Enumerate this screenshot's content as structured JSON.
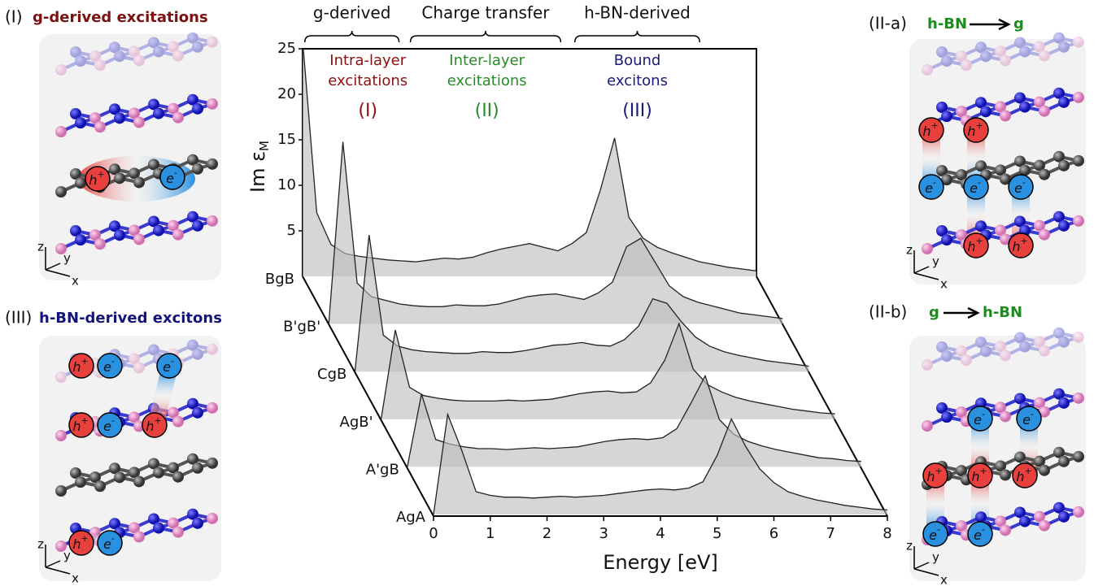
{
  "panels": [
    {
      "label": "(I)",
      "title": "g-derived excitations",
      "color": "#7a1010"
    },
    {
      "label": "(III)",
      "title": "h-BN-derived excitons",
      "color": "#14147a"
    },
    {
      "label": "(II-a)",
      "from": "h-BN",
      "to": "g",
      "color": "#1f8a1f"
    },
    {
      "label": "(II-b)",
      "from": "g",
      "to": "h-BN",
      "color": "#1f8a1f"
    }
  ],
  "symbols": {
    "hole": "h",
    "hole_charge": "+",
    "electron": "e",
    "electron_charge": "-",
    "axis_z": "z",
    "axis_y": "y",
    "axis_x": "x"
  },
  "chart_data": {
    "type": "waterfall",
    "xlabel": "Energy [eV]",
    "ylabel": "Im ε",
    "ylabel_subscript": "M",
    "xlim": [
      0,
      8
    ],
    "xticks": [
      0,
      1,
      2,
      3,
      4,
      5,
      6,
      7,
      8
    ],
    "ylim": [
      0,
      25
    ],
    "yticks": [
      5,
      10,
      15,
      20,
      25
    ],
    "color": "#bdbdbd",
    "x": [
      0,
      0.25,
      0.5,
      0.75,
      1,
      1.25,
      1.5,
      1.75,
      2,
      2.25,
      2.5,
      2.75,
      3,
      3.25,
      3.5,
      3.75,
      4,
      4.25,
      4.5,
      4.75,
      5,
      5.25,
      5.5,
      5.75,
      6,
      6.25,
      6.5,
      6.75,
      7,
      7.25,
      7.5,
      7.75,
      8
    ],
    "series": [
      {
        "name": "BgB",
        "values": [
          26,
          7,
          3.5,
          2.5,
          2.2,
          2,
          1.8,
          1.7,
          1.6,
          1.8,
          2.0,
          1.9,
          2.1,
          2.6,
          3.0,
          3.3,
          3.6,
          3.2,
          2.8,
          3.6,
          4.8,
          9.5,
          15.2,
          6.5,
          4.2,
          3.2,
          2.6,
          2.1,
          1.6,
          1.3,
          1.0,
          0.8,
          0.6
        ]
      },
      {
        "name": "B'gB'",
        "values": [
          0,
          20,
          4.5,
          3,
          2.6,
          2.2,
          2,
          1.9,
          1.9,
          2.1,
          2.0,
          2.0,
          2.2,
          2.6,
          3.0,
          3.2,
          3.3,
          3.0,
          2.7,
          3.4,
          4.6,
          8.5,
          9.4,
          6.8,
          4.2,
          3.0,
          2.4,
          2.0,
          1.6,
          1.2,
          1.0,
          0.8,
          0.6
        ]
      },
      {
        "name": "CgB",
        "values": [
          0,
          15,
          4,
          2.8,
          2.4,
          2.2,
          2.1,
          2.0,
          2.0,
          2.2,
          2.1,
          2.1,
          2.3,
          2.6,
          2.9,
          3.0,
          3.2,
          2.9,
          2.8,
          3.5,
          5.0,
          8.0,
          7.5,
          5.5,
          3.8,
          2.8,
          2.2,
          1.8,
          1.5,
          1.2,
          1.0,
          0.8,
          0.6
        ]
      },
      {
        "name": "AgB'",
        "values": [
          0,
          9.8,
          3.5,
          2.6,
          2.3,
          2.1,
          2.0,
          2.0,
          2.0,
          2.1,
          2.0,
          2.1,
          2.2,
          2.5,
          2.8,
          3.0,
          3.1,
          2.9,
          3.0,
          4.0,
          6.5,
          10.5,
          5.5,
          3.8,
          3.0,
          2.4,
          2.0,
          1.7,
          1.4,
          1.1,
          0.9,
          0.7,
          0.6
        ]
      },
      {
        "name": "A'gB",
        "values": [
          0,
          8,
          3,
          2.5,
          2.2,
          2.0,
          2.0,
          1.9,
          2.0,
          2.1,
          2.0,
          2.1,
          2.2,
          2.5,
          2.8,
          3.0,
          3.1,
          3.0,
          3.2,
          4.2,
          7.0,
          10.0,
          5.2,
          3.6,
          2.8,
          2.3,
          1.9,
          1.6,
          1.3,
          1.0,
          0.9,
          0.7,
          0.6
        ]
      },
      {
        "name": "AgA",
        "values": [
          0,
          11,
          7,
          2.5,
          2.1,
          1.9,
          1.9,
          1.8,
          1.9,
          2.0,
          1.9,
          2.0,
          2.1,
          2.3,
          2.5,
          2.7,
          2.8,
          2.7,
          2.9,
          3.6,
          6.5,
          10.5,
          7.5,
          5.0,
          3.5,
          2.5,
          2.0,
          1.6,
          1.3,
          1.0,
          0.8,
          0.6,
          0.5
        ]
      }
    ],
    "regions": [
      {
        "label": "g-derived",
        "range": [
          0.04,
          1.7
        ]
      },
      {
        "label": "Charge transfer",
        "range": [
          1.9,
          4.55
        ]
      },
      {
        "label": "h-BN-derived",
        "range": [
          4.8,
          7.0
        ]
      }
    ],
    "annotations": [
      {
        "lines": [
          "Intra-layer",
          "excitations"
        ],
        "tag": "(I)",
        "x": 1.15,
        "color": "#8b1010"
      },
      {
        "lines": [
          "Inter-layer",
          "excitations"
        ],
        "tag": "(II)",
        "x": 3.25,
        "color": "#2a8a2a"
      },
      {
        "lines": [
          "Bound",
          "excitons"
        ],
        "tag": "(III)",
        "x": 5.9,
        "color": "#1a1a7a"
      }
    ]
  }
}
